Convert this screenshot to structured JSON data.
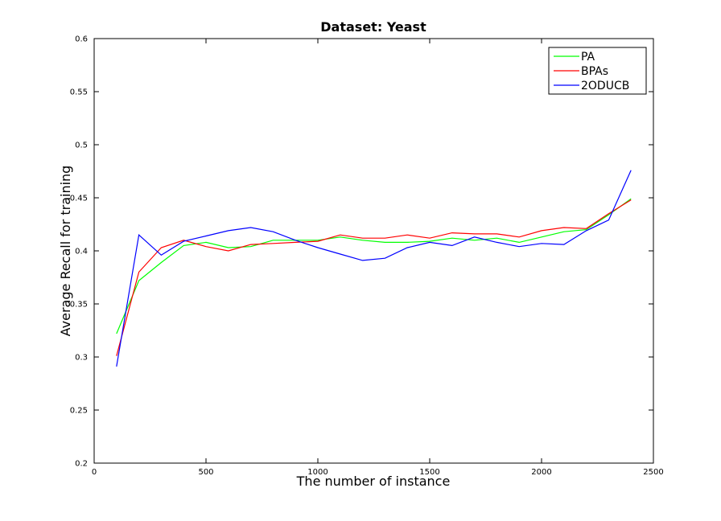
{
  "chart_data": {
    "type": "line",
    "title": "Dataset: Yeast",
    "xlabel": "The number of instance",
    "ylabel": "Average Recall for training",
    "xlim": [
      0,
      2500
    ],
    "ylim": [
      0.2,
      0.6
    ],
    "xticks": [
      0,
      500,
      1000,
      1500,
      2000,
      2500
    ],
    "xtick_labels": [
      "0",
      "500",
      "1000",
      "1500",
      "2000",
      "2500"
    ],
    "yticks": [
      0.2,
      0.25,
      0.3,
      0.35,
      0.4,
      0.45,
      0.5,
      0.55,
      0.6
    ],
    "ytick_labels": [
      "0.2",
      "0.25",
      "0.3",
      "0.35",
      "0.4",
      "0.45",
      "0.5",
      "0.55",
      "0.6"
    ],
    "grid": false,
    "legend_position": "top-right",
    "x": [
      100,
      200,
      300,
      400,
      500,
      600,
      700,
      800,
      900,
      1000,
      1100,
      1200,
      1300,
      1400,
      1500,
      1600,
      1700,
      1800,
      1900,
      2000,
      2100,
      2200,
      2300,
      2400
    ],
    "series": [
      {
        "name": "PA",
        "color": "#00ff00",
        "values": [
          0.322,
          0.372,
          0.389,
          0.405,
          0.408,
          0.403,
          0.404,
          0.41,
          0.41,
          0.41,
          0.413,
          0.41,
          0.408,
          0.408,
          0.409,
          0.412,
          0.41,
          0.412,
          0.408,
          0.413,
          0.418,
          0.42,
          0.434,
          0.449
        ]
      },
      {
        "name": "BPAs",
        "color": "#ff0000",
        "values": [
          0.301,
          0.38,
          0.403,
          0.41,
          0.404,
          0.4,
          0.406,
          0.407,
          0.408,
          0.409,
          0.415,
          0.412,
          0.412,
          0.415,
          0.412,
          0.417,
          0.416,
          0.416,
          0.413,
          0.419,
          0.422,
          0.421,
          0.435,
          0.448
        ]
      },
      {
        "name": "2ODUCB",
        "color": "#0000ff",
        "values": [
          0.291,
          0.415,
          0.396,
          0.409,
          0.414,
          0.419,
          0.422,
          0.418,
          0.41,
          0.403,
          0.397,
          0.391,
          0.393,
          0.403,
          0.408,
          0.405,
          0.413,
          0.408,
          0.404,
          0.407,
          0.406,
          0.419,
          0.429,
          0.476
        ]
      }
    ]
  }
}
